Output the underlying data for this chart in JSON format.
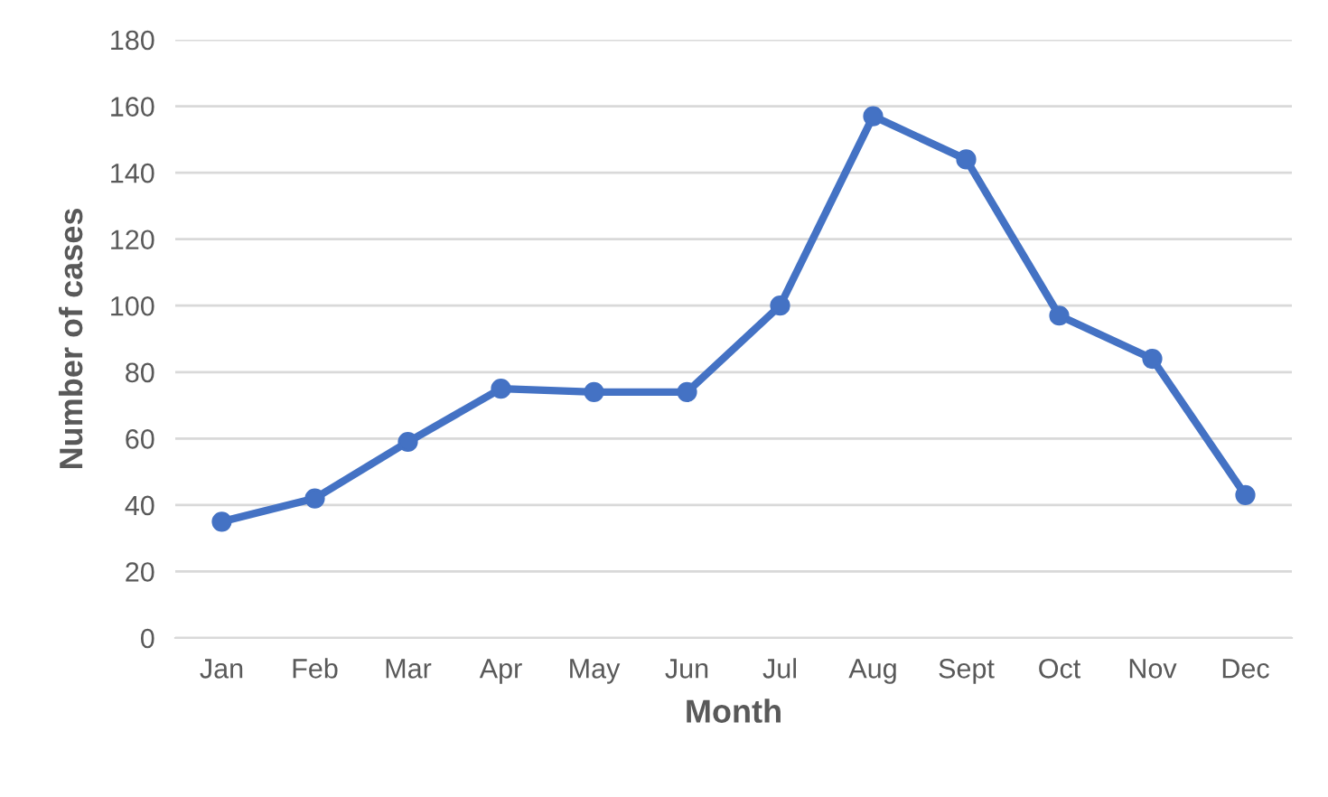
{
  "chart_data": {
    "type": "line",
    "xlabel": "Month",
    "ylabel": "Number of cases",
    "categories": [
      "Jan",
      "Feb",
      "Mar",
      "Apr",
      "May",
      "Jun",
      "Jul",
      "Aug",
      "Sept",
      "Oct",
      "Nov",
      "Dec"
    ],
    "series": [
      {
        "color": "#4472c4",
        "values": [
          35,
          42,
          59,
          75,
          74,
          74,
          100,
          157,
          144,
          97,
          84,
          43
        ]
      }
    ],
    "ylim": [
      0,
      180
    ],
    "yticks": [
      0,
      20,
      40,
      60,
      80,
      100,
      120,
      140,
      160,
      180
    ],
    "grid": "y",
    "marker": "circle",
    "line_style": "solid"
  }
}
